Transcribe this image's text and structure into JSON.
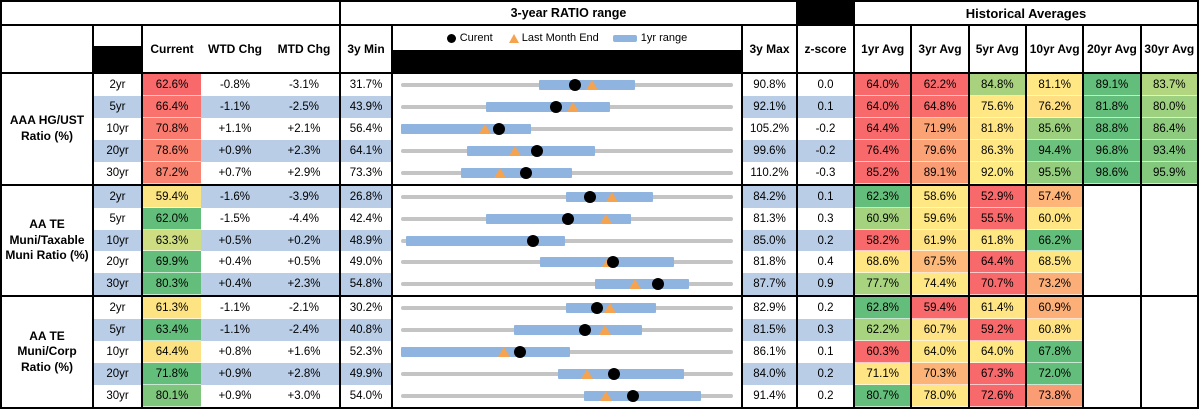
{
  "header": {
    "ratio_range_title": "3-year RATIO range",
    "historical_title": "Historical Averages",
    "cols": {
      "current": "Current",
      "wtd": "WTD Chg",
      "mtd": "MTD Chg",
      "min": "3y Min",
      "max": "3y Max",
      "z": "z-score"
    },
    "ha_cols": [
      "1yr Avg",
      "3yr Avg",
      "5yr Avg",
      "10yr Avg",
      "20yr Avg",
      "30yr Avg"
    ],
    "legend": {
      "current": "Curent",
      "last_month": "Last Month End",
      "range": "1yr range"
    }
  },
  "colors": {
    "stripe_blue": "#B9CDE7",
    "range_bar_blue": "#8FB4E0",
    "track_gray": "#C4C4C4",
    "triangle_orange": "#F5A34F",
    "dot_black": "#000000",
    "scale_red": "#F8696B",
    "scale_yellow": "#FFE683",
    "scale_green": "#63BE7B"
  },
  "groups": [
    {
      "label": "AAA HG/UST Ratio (%)",
      "rows": [
        {
          "tenor": "2yr",
          "current": {
            "v": "62.6%",
            "c": "#F8696B"
          },
          "wtd": "-0.8%",
          "mtd": "-3.1%",
          "min": "31.7%",
          "max": "90.8%",
          "z": "0.0",
          "chart": {
            "min": 31.7,
            "max": 90.8,
            "cur": 62.6,
            "lme": 65.7,
            "lo": 56.2,
            "hi": 73.3
          },
          "ha": [
            {
              "v": "64.0%",
              "c": "#F8696B"
            },
            {
              "v": "62.2%",
              "c": "#F8696B"
            },
            {
              "v": "84.8%",
              "c": "#A9D27F"
            },
            {
              "v": "81.1%",
              "c": "#FFE783"
            },
            {
              "v": "89.1%",
              "c": "#63BE7B"
            },
            {
              "v": "83.7%",
              "c": "#B2D580"
            }
          ]
        },
        {
          "tenor": "5yr",
          "current": {
            "v": "66.4%",
            "c": "#F9726E"
          },
          "wtd": "-1.1%",
          "mtd": "-2.5%",
          "min": "43.9%",
          "max": "92.1%",
          "z": "0.1",
          "chart": {
            "min": 43.9,
            "max": 92.1,
            "cur": 66.4,
            "lme": 68.9,
            "lo": 56.2,
            "hi": 74.3
          },
          "ha": [
            {
              "v": "64.0%",
              "c": "#F8696B"
            },
            {
              "v": "64.8%",
              "c": "#F86C6C"
            },
            {
              "v": "75.6%",
              "c": "#FFE883"
            },
            {
              "v": "76.2%",
              "c": "#FEDF82"
            },
            {
              "v": "81.8%",
              "c": "#63BE7B"
            },
            {
              "v": "80.0%",
              "c": "#9ED17F"
            }
          ]
        },
        {
          "tenor": "10yr",
          "current": {
            "v": "70.8%",
            "c": "#F97B70"
          },
          "wtd": "+1.1%",
          "mtd": "+2.1%",
          "min": "56.4%",
          "max": "105.2%",
          "z": "-0.2",
          "chart": {
            "min": 56.4,
            "max": 105.2,
            "cur": 70.8,
            "lme": 68.7,
            "lo": 56.4,
            "hi": 75.5
          },
          "ha": [
            {
              "v": "64.4%",
              "c": "#F8696B"
            },
            {
              "v": "71.9%",
              "c": "#FCA376"
            },
            {
              "v": "81.8%",
              "c": "#FFE583"
            },
            {
              "v": "85.6%",
              "c": "#9CCF7E"
            },
            {
              "v": "88.8%",
              "c": "#63BE7B"
            },
            {
              "v": "86.4%",
              "c": "#8FCB7E"
            }
          ]
        },
        {
          "tenor": "20yr",
          "current": {
            "v": "78.6%",
            "c": "#F98270"
          },
          "wtd": "+0.9%",
          "mtd": "+2.3%",
          "min": "64.1%",
          "max": "99.6%",
          "z": "-0.2",
          "chart": {
            "min": 64.1,
            "max": 99.6,
            "cur": 78.6,
            "lme": 76.3,
            "lo": 71.2,
            "hi": 84.8
          },
          "ha": [
            {
              "v": "76.4%",
              "c": "#F8696B"
            },
            {
              "v": "79.6%",
              "c": "#FBA276"
            },
            {
              "v": "86.3%",
              "c": "#FFE883"
            },
            {
              "v": "94.4%",
              "c": "#6CC17C"
            },
            {
              "v": "96.8%",
              "c": "#63BE7B"
            },
            {
              "v": "93.4%",
              "c": "#7FC67D"
            }
          ]
        },
        {
          "tenor": "30yr",
          "current": {
            "v": "87.2%",
            "c": "#F98471"
          },
          "wtd": "+0.7%",
          "mtd": "+2.9%",
          "min": "73.3%",
          "max": "110.2%",
          "z": "-0.3",
          "chart": {
            "min": 73.3,
            "max": 110.2,
            "cur": 87.2,
            "lme": 84.3,
            "lo": 80.0,
            "hi": 92.3
          },
          "ha": [
            {
              "v": "85.2%",
              "c": "#F8696B"
            },
            {
              "v": "89.1%",
              "c": "#FA9D75"
            },
            {
              "v": "92.0%",
              "c": "#FFEB84"
            },
            {
              "v": "95.5%",
              "c": "#94CD7E"
            },
            {
              "v": "98.6%",
              "c": "#63BE7B"
            },
            {
              "v": "95.9%",
              "c": "#84C87D"
            }
          ]
        }
      ]
    },
    {
      "label": "AA TE Muni/Taxable Muni Ratio (%)",
      "rows": [
        {
          "tenor": "2yr",
          "current": {
            "v": "59.4%",
            "c": "#FBE583"
          },
          "wtd": "-1.6%",
          "mtd": "-3.9%",
          "min": "26.8%",
          "max": "84.2%",
          "z": "0.1",
          "chart": {
            "min": 26.8,
            "max": 84.2,
            "cur": 59.4,
            "lme": 63.3,
            "lo": 55.3,
            "hi": 70.4
          },
          "ha": [
            {
              "v": "62.3%",
              "c": "#63BE7B"
            },
            {
              "v": "58.6%",
              "c": "#FFE783"
            },
            {
              "v": "52.9%",
              "c": "#F8696B"
            },
            {
              "v": "57.4%",
              "c": "#FDB57A"
            },
            null,
            null
          ]
        },
        {
          "tenor": "5yr",
          "current": {
            "v": "62.0%",
            "c": "#63BE7B"
          },
          "wtd": "-1.5%",
          "mtd": "-4.4%",
          "min": "42.4%",
          "max": "81.3%",
          "z": "0.3",
          "chart": {
            "min": 42.4,
            "max": 81.3,
            "cur": 62.0,
            "lme": 66.4,
            "lo": 52.4,
            "hi": 69.4
          },
          "ha": [
            {
              "v": "60.9%",
              "c": "#A5D27F"
            },
            {
              "v": "59.6%",
              "c": "#FFE883"
            },
            {
              "v": "55.5%",
              "c": "#F8696B"
            },
            {
              "v": "60.0%",
              "c": "#FFE583"
            },
            null,
            null
          ]
        },
        {
          "tenor": "10yr",
          "current": {
            "v": "63.3%",
            "c": "#CEDD81"
          },
          "wtd": "+0.5%",
          "mtd": "+0.2%",
          "min": "48.9%",
          "max": "85.0%",
          "z": "0.2",
          "chart": {
            "min": 48.9,
            "max": 85.0,
            "cur": 63.3,
            "lme": 63.1,
            "lo": 49.4,
            "hi": 66.7
          },
          "ha": [
            {
              "v": "58.2%",
              "c": "#F8696B"
            },
            {
              "v": "61.9%",
              "c": "#FFE383"
            },
            {
              "v": "61.8%",
              "c": "#FFE883"
            },
            {
              "v": "66.2%",
              "c": "#63BE7B"
            },
            null,
            null
          ]
        },
        {
          "tenor": "20yr",
          "current": {
            "v": "69.9%",
            "c": "#63BE7B"
          },
          "wtd": "+0.4%",
          "mtd": "+0.5%",
          "min": "49.0%",
          "max": "81.8%",
          "z": "0.4",
          "chart": {
            "min": 49.0,
            "max": 81.8,
            "cur": 69.9,
            "lme": 69.4,
            "lo": 62.7,
            "hi": 76.0
          },
          "ha": [
            {
              "v": "68.6%",
              "c": "#FFE683"
            },
            {
              "v": "67.5%",
              "c": "#FDBA7B"
            },
            {
              "v": "64.4%",
              "c": "#F8696B"
            },
            {
              "v": "68.5%",
              "c": "#FEE683"
            },
            null,
            null
          ]
        },
        {
          "tenor": "30yr",
          "current": {
            "v": "80.3%",
            "c": "#63BE7B"
          },
          "wtd": "+0.4%",
          "mtd": "+2.3%",
          "min": "54.8%",
          "max": "87.7%",
          "z": "0.9",
          "chart": {
            "min": 54.8,
            "max": 87.7,
            "cur": 80.3,
            "lme": 78.0,
            "lo": 74.0,
            "hi": 83.3
          },
          "ha": [
            {
              "v": "77.7%",
              "c": "#A8D37F"
            },
            {
              "v": "74.4%",
              "c": "#FFE883"
            },
            {
              "v": "70.7%",
              "c": "#F8696B"
            },
            {
              "v": "73.2%",
              "c": "#FCAE78"
            },
            null,
            null
          ]
        }
      ]
    },
    {
      "label": "AA TE Muni/Corp Ratio (%)",
      "rows": [
        {
          "tenor": "2yr",
          "current": {
            "v": "61.3%",
            "c": "#FEE383"
          },
          "wtd": "-1.1%",
          "mtd": "-2.1%",
          "min": "30.2%",
          "max": "82.9%",
          "z": "0.2",
          "chart": {
            "min": 30.2,
            "max": 82.9,
            "cur": 61.3,
            "lme": 63.4,
            "lo": 56.4,
            "hi": 70.6
          },
          "ha": [
            {
              "v": "62.8%",
              "c": "#63BE7B"
            },
            {
              "v": "59.4%",
              "c": "#F8696B"
            },
            {
              "v": "61.4%",
              "c": "#FFE583"
            },
            {
              "v": "60.9%",
              "c": "#FCB078"
            },
            null,
            null
          ]
        },
        {
          "tenor": "5yr",
          "current": {
            "v": "63.4%",
            "c": "#63BE7B"
          },
          "wtd": "-1.1%",
          "mtd": "-2.4%",
          "min": "40.8%",
          "max": "81.5%",
          "z": "0.3",
          "chart": {
            "min": 40.8,
            "max": 81.5,
            "cur": 63.4,
            "lme": 65.8,
            "lo": 54.7,
            "hi": 70.4
          },
          "ha": [
            {
              "v": "62.2%",
              "c": "#A8D37F"
            },
            {
              "v": "60.7%",
              "c": "#FFE283"
            },
            {
              "v": "59.2%",
              "c": "#F8696B"
            },
            {
              "v": "60.8%",
              "c": "#FFE383"
            },
            null,
            null
          ]
        },
        {
          "tenor": "10yr",
          "current": {
            "v": "64.4%",
            "c": "#FDE283"
          },
          "wtd": "+0.8%",
          "mtd": "+1.6%",
          "min": "52.3%",
          "max": "86.1%",
          "z": "0.1",
          "chart": {
            "min": 52.3,
            "max": 86.1,
            "cur": 64.4,
            "lme": 62.8,
            "lo": 52.3,
            "hi": 69.5
          },
          "ha": [
            {
              "v": "60.3%",
              "c": "#F8696B"
            },
            {
              "v": "64.0%",
              "c": "#FFE683"
            },
            {
              "v": "64.0%",
              "c": "#FFE883"
            },
            {
              "v": "67.8%",
              "c": "#63BE7B"
            },
            null,
            null
          ]
        },
        {
          "tenor": "20yr",
          "current": {
            "v": "71.8%",
            "c": "#63BE7B"
          },
          "wtd": "+0.9%",
          "mtd": "+2.8%",
          "min": "49.9%",
          "max": "84.0%",
          "z": "0.2",
          "chart": {
            "min": 49.9,
            "max": 84.0,
            "cur": 71.8,
            "lme": 69.0,
            "lo": 66.0,
            "hi": 79.0
          },
          "ha": [
            {
              "v": "71.1%",
              "c": "#FFE583"
            },
            {
              "v": "70.3%",
              "c": "#FCB378"
            },
            {
              "v": "67.3%",
              "c": "#F8696B"
            },
            {
              "v": "72.0%",
              "c": "#63BE7B"
            },
            null,
            null
          ]
        },
        {
          "tenor": "30yr",
          "current": {
            "v": "80.1%",
            "c": "#7FC67D"
          },
          "wtd": "+0.9%",
          "mtd": "+3.0%",
          "min": "54.0%",
          "max": "91.4%",
          "z": "0.2",
          "chart": {
            "min": 54.0,
            "max": 91.4,
            "cur": 80.1,
            "lme": 77.1,
            "lo": 74.6,
            "hi": 87.8
          },
          "ha": [
            {
              "v": "80.7%",
              "c": "#63BE7B"
            },
            {
              "v": "78.0%",
              "c": "#FFE683"
            },
            {
              "v": "72.6%",
              "c": "#F8696B"
            },
            {
              "v": "73.8%",
              "c": "#FA9C74"
            },
            null,
            null
          ]
        }
      ]
    }
  ],
  "chart_data": {
    "type": "scatter",
    "title": "3-year RATIO range",
    "legend": [
      "Curent",
      "Last Month End",
      "1yr range"
    ],
    "x_meaning": "ratio %, each row scaled from its 3y Min to 3y Max",
    "rows": [
      {
        "group": "AAA HG/UST",
        "tenor": "2yr",
        "min3y": 31.7,
        "max3y": 90.8,
        "current": 62.6,
        "last_month_end": 65.7,
        "range_1yr": [
          56.2,
          73.3
        ]
      },
      {
        "group": "AAA HG/UST",
        "tenor": "5yr",
        "min3y": 43.9,
        "max3y": 92.1,
        "current": 66.4,
        "last_month_end": 68.9,
        "range_1yr": [
          56.2,
          74.3
        ]
      },
      {
        "group": "AAA HG/UST",
        "tenor": "10yr",
        "min3y": 56.4,
        "max3y": 105.2,
        "current": 70.8,
        "last_month_end": 68.7,
        "range_1yr": [
          56.4,
          75.5
        ]
      },
      {
        "group": "AAA HG/UST",
        "tenor": "20yr",
        "min3y": 64.1,
        "max3y": 99.6,
        "current": 78.6,
        "last_month_end": 76.3,
        "range_1yr": [
          71.2,
          84.8
        ]
      },
      {
        "group": "AAA HG/UST",
        "tenor": "30yr",
        "min3y": 73.3,
        "max3y": 110.2,
        "current": 87.2,
        "last_month_end": 84.3,
        "range_1yr": [
          80.0,
          92.3
        ]
      },
      {
        "group": "AA TE Muni/Taxable Muni",
        "tenor": "2yr",
        "min3y": 26.8,
        "max3y": 84.2,
        "current": 59.4,
        "last_month_end": 63.3,
        "range_1yr": [
          55.3,
          70.4
        ]
      },
      {
        "group": "AA TE Muni/Taxable Muni",
        "tenor": "5yr",
        "min3y": 42.4,
        "max3y": 81.3,
        "current": 62.0,
        "last_month_end": 66.4,
        "range_1yr": [
          52.4,
          69.4
        ]
      },
      {
        "group": "AA TE Muni/Taxable Muni",
        "tenor": "10yr",
        "min3y": 48.9,
        "max3y": 85.0,
        "current": 63.3,
        "last_month_end": 63.1,
        "range_1yr": [
          49.4,
          66.7
        ]
      },
      {
        "group": "AA TE Muni/Taxable Muni",
        "tenor": "20yr",
        "min3y": 49.0,
        "max3y": 81.8,
        "current": 69.9,
        "last_month_end": 69.4,
        "range_1yr": [
          62.7,
          76.0
        ]
      },
      {
        "group": "AA TE Muni/Taxable Muni",
        "tenor": "30yr",
        "min3y": 54.8,
        "max3y": 87.7,
        "current": 80.3,
        "last_month_end": 78.0,
        "range_1yr": [
          74.0,
          83.3
        ]
      },
      {
        "group": "AA TE Muni/Corp",
        "tenor": "2yr",
        "min3y": 30.2,
        "max3y": 82.9,
        "current": 61.3,
        "last_month_end": 63.4,
        "range_1yr": [
          56.4,
          70.6
        ]
      },
      {
        "group": "AA TE Muni/Corp",
        "tenor": "5yr",
        "min3y": 40.8,
        "max3y": 81.5,
        "current": 63.4,
        "last_month_end": 65.8,
        "range_1yr": [
          54.7,
          70.4
        ]
      },
      {
        "group": "AA TE Muni/Corp",
        "tenor": "10yr",
        "min3y": 52.3,
        "max3y": 86.1,
        "current": 64.4,
        "last_month_end": 62.8,
        "range_1yr": [
          52.3,
          69.5
        ]
      },
      {
        "group": "AA TE Muni/Corp",
        "tenor": "20yr",
        "min3y": 49.9,
        "max3y": 84.0,
        "current": 71.8,
        "last_month_end": 69.0,
        "range_1yr": [
          66.0,
          79.0
        ]
      },
      {
        "group": "AA TE Muni/Corp",
        "tenor": "30yr",
        "min3y": 54.0,
        "max3y": 91.4,
        "current": 80.1,
        "last_month_end": 77.1,
        "range_1yr": [
          74.6,
          87.8
        ]
      }
    ]
  }
}
